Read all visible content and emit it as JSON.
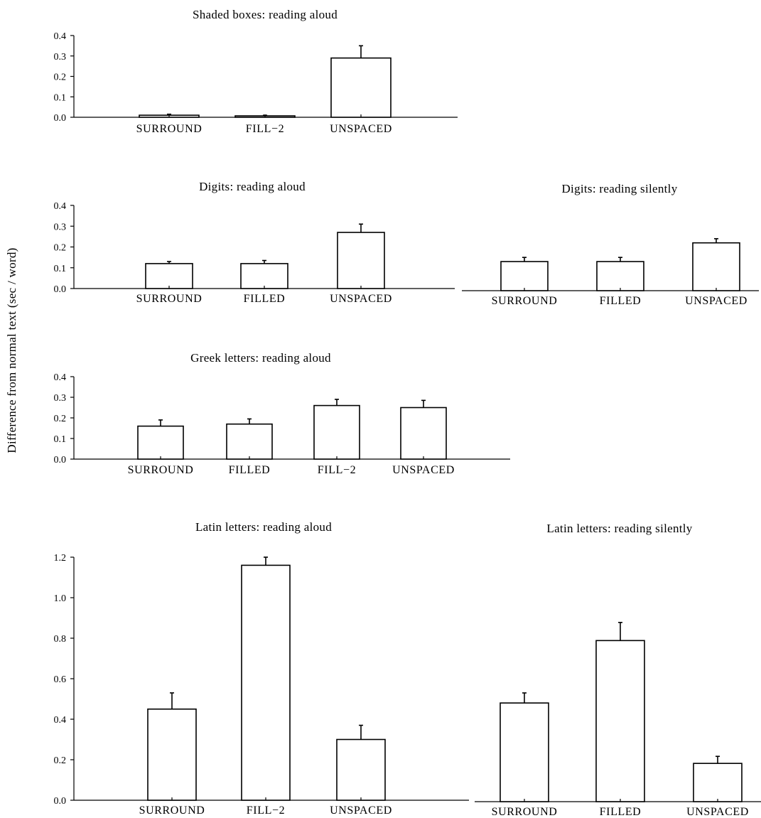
{
  "figure": {
    "ylabel": "Difference from normal text (sec / word)"
  },
  "chart_data": [
    {
      "type": "bar",
      "title": "Shaded boxes: reading aloud",
      "categories": [
        "SURROUND",
        "FILL−2",
        "UNSPACED"
      ],
      "values": [
        0.01,
        0.005,
        0.29
      ],
      "errors": [
        0.005,
        0.005,
        0.06
      ],
      "ylim": [
        0,
        0.4
      ],
      "yticks": [
        "0.4",
        "0.3",
        "0.2",
        "0.1",
        "0.0"
      ]
    },
    {
      "type": "bar",
      "title": "Digits: reading aloud",
      "categories": [
        "SURROUND",
        "FILLED",
        "UNSPACED"
      ],
      "values": [
        0.12,
        0.12,
        0.27
      ],
      "errors": [
        0.01,
        0.015,
        0.04
      ],
      "ylim": [
        0,
        0.4
      ],
      "yticks": [
        "0.4",
        "0.3",
        "0.2",
        "0.1",
        "0.0"
      ]
    },
    {
      "type": "bar",
      "title": "Digits: reading silently",
      "categories": [
        "SURROUND",
        "FILLED",
        "UNSPACED"
      ],
      "values": [
        0.14,
        0.14,
        0.23
      ],
      "errors": [
        0.02,
        0.02,
        0.02
      ],
      "ylim": [
        0,
        0.4
      ],
      "yticks": []
    },
    {
      "type": "bar",
      "title": "Greek letters: reading aloud",
      "categories": [
        "SURROUND",
        "FILLED",
        "FILL−2",
        "UNSPACED"
      ],
      "values": [
        0.16,
        0.17,
        0.26,
        0.25
      ],
      "errors": [
        0.03,
        0.025,
        0.03,
        0.035
      ],
      "ylim": [
        0,
        0.4
      ],
      "yticks": [
        "0.4",
        "0.3",
        "0.2",
        "0.1",
        "0.0"
      ]
    },
    {
      "type": "bar",
      "title": "Latin letters: reading aloud",
      "categories": [
        "SURROUND",
        "FILL−2",
        "UNSPACED"
      ],
      "values": [
        0.45,
        1.16,
        0.3
      ],
      "errors": [
        0.08,
        0.04,
        0.07
      ],
      "ylim": [
        0,
        1.2
      ],
      "yticks": [
        "1.2",
        "1.0",
        "0.8",
        "0.6",
        "0.4",
        "0.2",
        "0.0"
      ]
    },
    {
      "type": "bar",
      "title": "Latin letters: reading silently",
      "categories": [
        "SURROUND",
        "FILLED",
        "UNSPACED"
      ],
      "values": [
        0.49,
        0.8,
        0.19
      ],
      "errors": [
        0.05,
        0.09,
        0.035
      ],
      "ylim": [
        0,
        1.2
      ],
      "yticks": []
    }
  ]
}
